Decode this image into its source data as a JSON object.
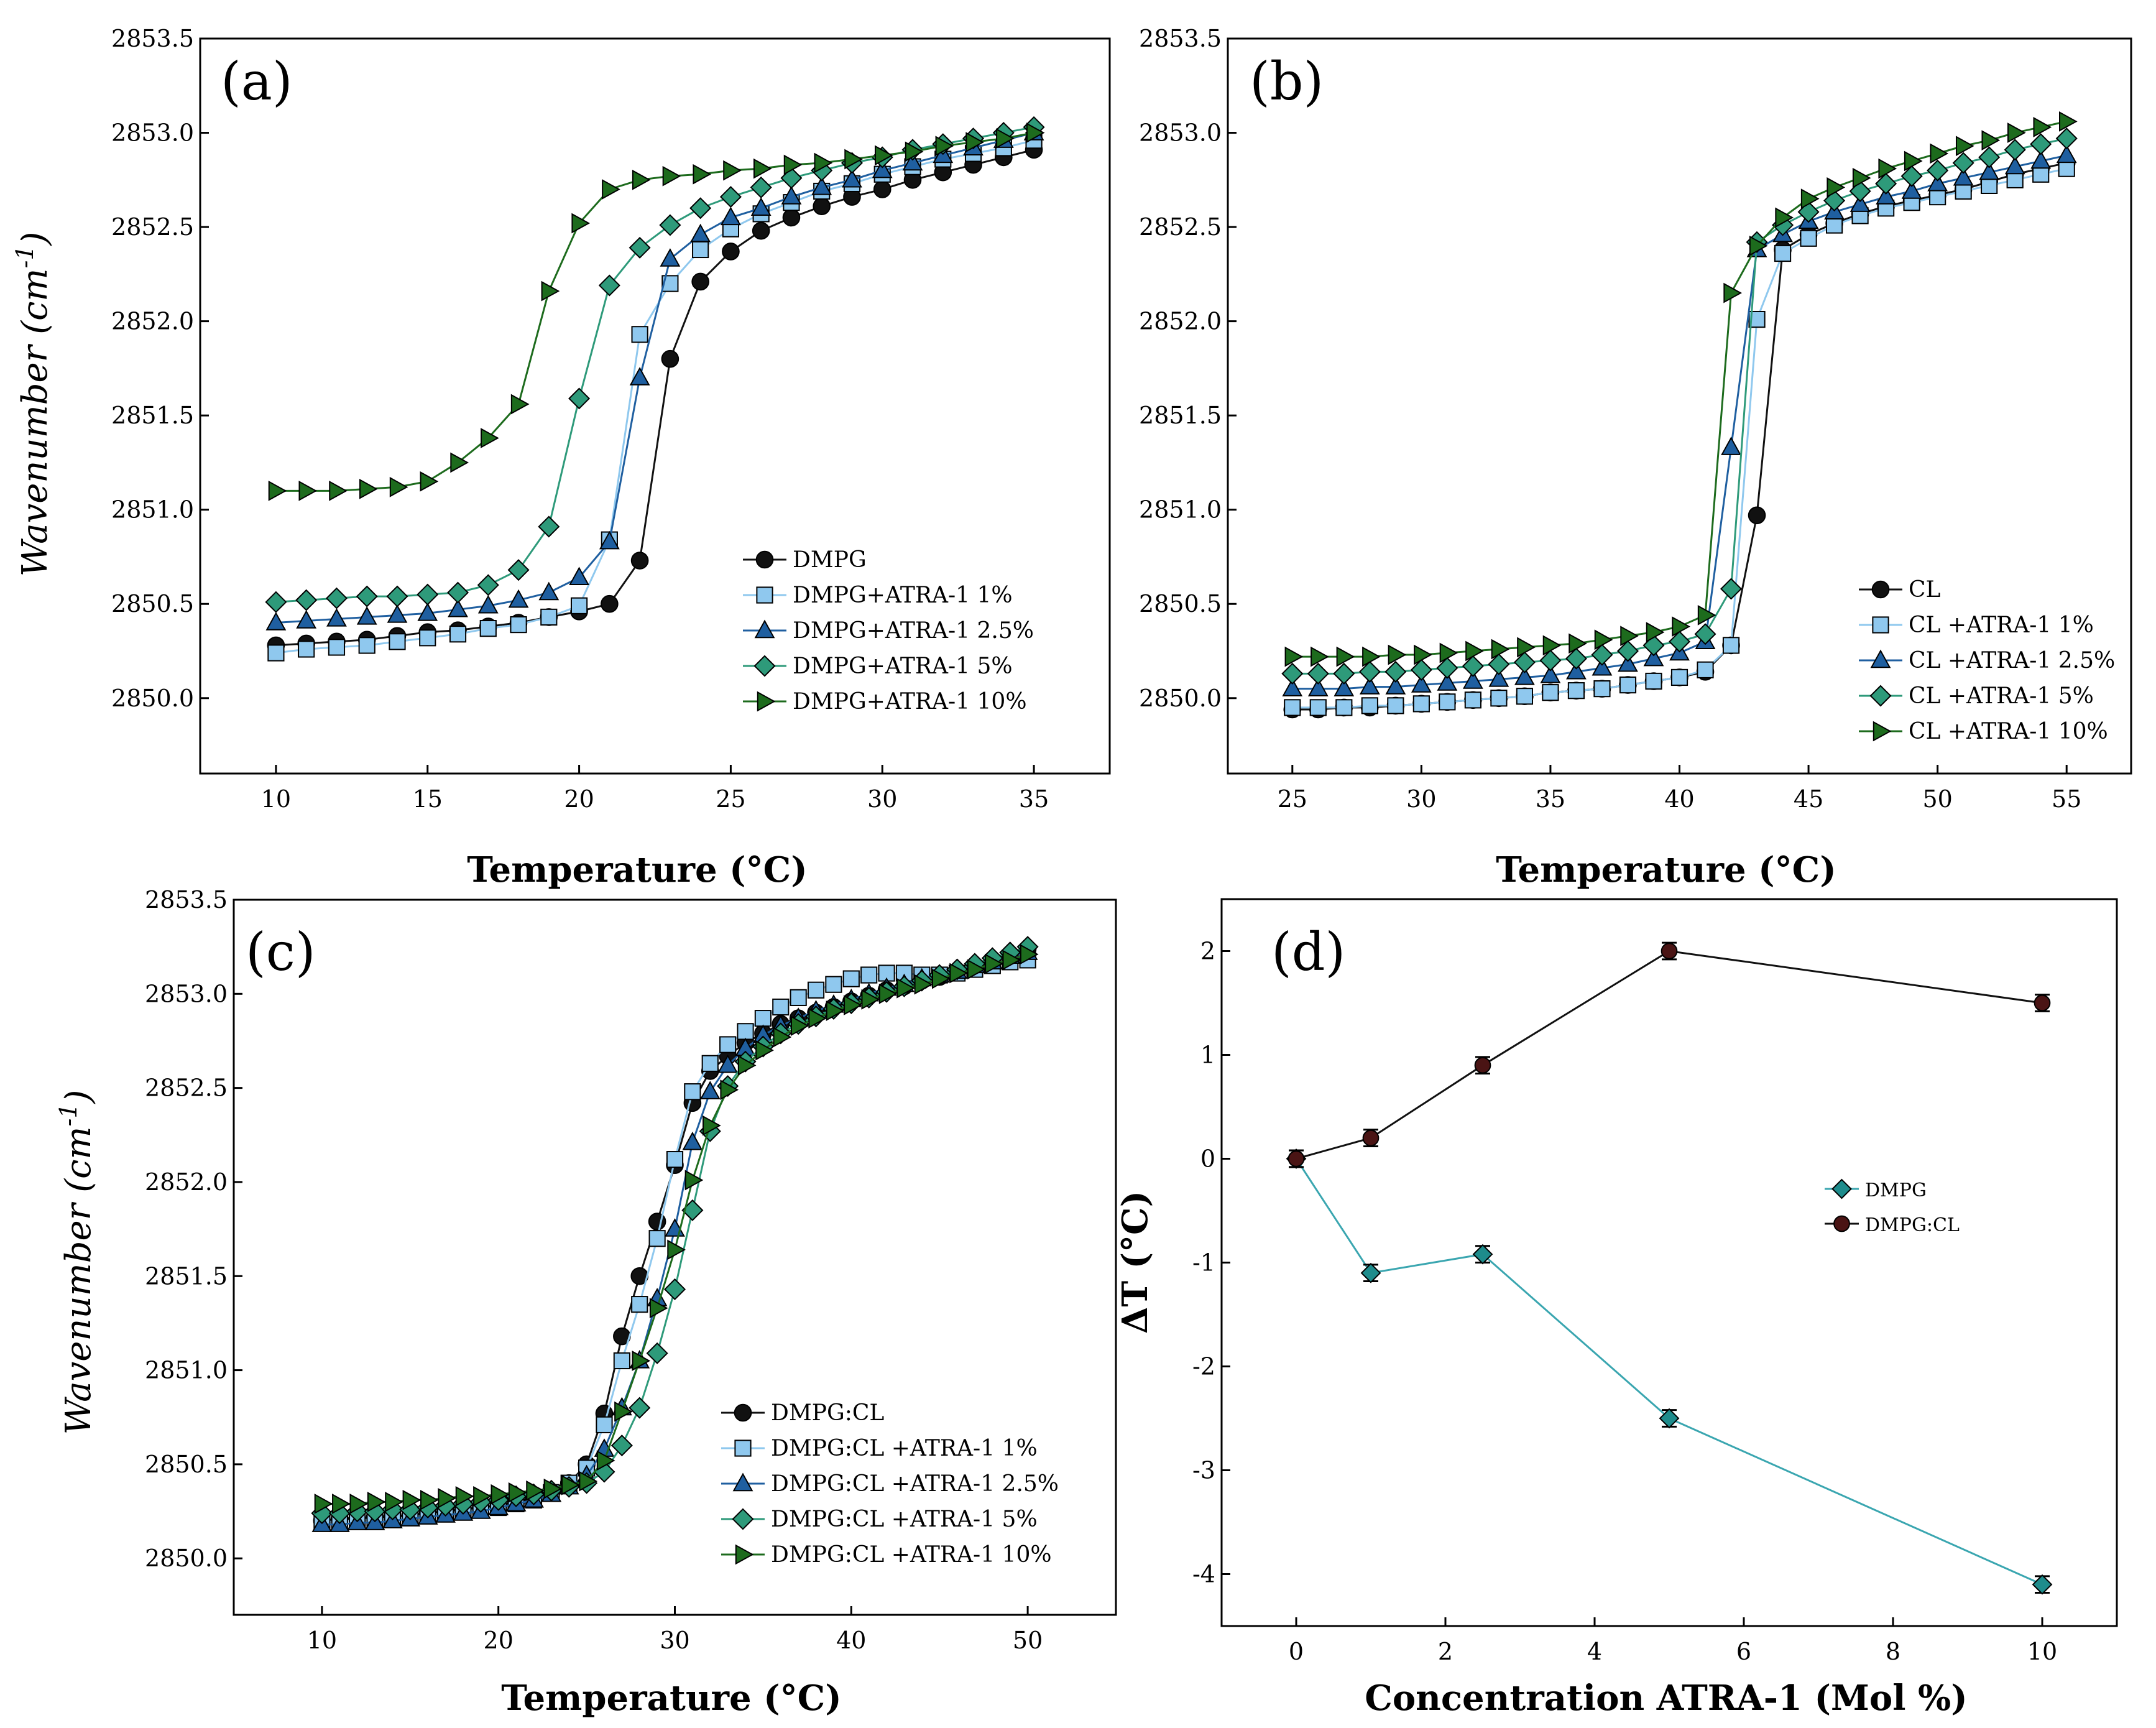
{
  "chart_data": [
    {
      "panel": "(a)",
      "type": "line",
      "xlabel": "Temperature (°C)",
      "ylabel": "Wavenumber (cm-1)",
      "xlim": [
        7.5,
        37.5
      ],
      "ylim": [
        2849.6,
        2853.5
      ],
      "xticks": [
        10,
        15,
        20,
        25,
        30,
        35
      ],
      "yticks": [
        2850.0,
        2850.5,
        2851.0,
        2851.5,
        2852.0,
        2852.5,
        2853.0,
        2853.5
      ],
      "legend_position": "center-right",
      "x": [
        10,
        11,
        12,
        13,
        14,
        15,
        16,
        17,
        18,
        19,
        20,
        21,
        22,
        23,
        24,
        25,
        26,
        27,
        28,
        29,
        30,
        31,
        32,
        33,
        34,
        35
      ],
      "series": [
        {
          "name": "DMPG",
          "marker": "circle",
          "color": "#111111",
          "line": "#111111",
          "values": [
            2850.28,
            2850.29,
            2850.3,
            2850.31,
            2850.33,
            2850.35,
            2850.36,
            2850.38,
            2850.4,
            2850.43,
            2850.46,
            2850.5,
            2850.73,
            2851.8,
            2852.21,
            2852.37,
            2852.48,
            2852.55,
            2852.61,
            2852.66,
            2852.7,
            2852.75,
            2852.79,
            2852.83,
            2852.87,
            2852.91
          ]
        },
        {
          "name": "DMPG+ATRA-1 1%",
          "marker": "square",
          "color": "#8fc8ee",
          "line": "#8fc8ee",
          "values": [
            2850.24,
            2850.26,
            2850.27,
            2850.28,
            2850.3,
            2850.32,
            2850.34,
            2850.37,
            2850.39,
            2850.43,
            2850.49,
            2850.84,
            2851.93,
            2852.2,
            2852.38,
            2852.49,
            2852.57,
            2852.63,
            2852.69,
            2852.73,
            2852.78,
            2852.82,
            2852.86,
            2852.89,
            2852.92,
            2852.96
          ]
        },
        {
          "name": "DMPG+ATRA-1 2.5%",
          "marker": "triangle-up",
          "color": "#1f5fa0",
          "line": "#1f5fa0",
          "values": [
            2850.4,
            2850.41,
            2850.42,
            2850.43,
            2850.44,
            2850.45,
            2850.47,
            2850.49,
            2850.52,
            2850.56,
            2850.64,
            2850.83,
            2851.7,
            2852.33,
            2852.46,
            2852.55,
            2852.6,
            2852.66,
            2852.71,
            2852.75,
            2852.8,
            2852.84,
            2852.88,
            2852.92,
            2852.96,
            2853.0
          ]
        },
        {
          "name": "DMPG+ATRA-1 5%",
          "marker": "diamond",
          "color": "#2e9a7a",
          "line": "#2e9a7a",
          "values": [
            2850.51,
            2850.52,
            2850.53,
            2850.54,
            2850.54,
            2850.55,
            2850.56,
            2850.6,
            2850.68,
            2850.91,
            2851.59,
            2852.19,
            2852.39,
            2852.51,
            2852.6,
            2852.66,
            2852.71,
            2852.76,
            2852.8,
            2852.84,
            2852.87,
            2852.91,
            2852.94,
            2852.97,
            2853.0,
            2853.03
          ]
        },
        {
          "name": "DMPG+ATRA-1 10%",
          "marker": "triangle-right",
          "color": "#1d6b1d",
          "line": "#1d6b1d",
          "values": [
            2851.1,
            2851.1,
            2851.1,
            2851.11,
            2851.12,
            2851.15,
            2851.25,
            2851.38,
            2851.56,
            2852.16,
            2852.52,
            2852.7,
            2852.75,
            2852.77,
            2852.78,
            2852.8,
            2852.81,
            2852.83,
            2852.84,
            2852.86,
            2852.88,
            2852.9,
            2852.93,
            2852.95,
            2852.97,
            2853.0
          ]
        }
      ]
    },
    {
      "panel": "(b)",
      "type": "line",
      "xlabel": "Temperature (°C)",
      "ylabel": "",
      "xlim": [
        22.5,
        57.5
      ],
      "ylim": [
        2849.6,
        2853.5
      ],
      "xticks": [
        25,
        30,
        35,
        40,
        45,
        50,
        55
      ],
      "yticks": [
        2850.0,
        2850.5,
        2851.0,
        2851.5,
        2852.0,
        2852.5,
        2853.0,
        2853.5
      ],
      "legend_position": "bottom-right",
      "x": [
        25,
        26,
        27,
        28,
        29,
        30,
        31,
        32,
        33,
        34,
        35,
        36,
        37,
        38,
        39,
        40,
        41,
        42,
        43,
        44,
        45,
        46,
        47,
        48,
        49,
        50,
        51,
        52,
        53,
        54,
        55
      ],
      "series": [
        {
          "name": "CL",
          "marker": "circle",
          "color": "#111111",
          "line": "#111111",
          "values": [
            2849.94,
            2849.94,
            2849.95,
            2849.95,
            2849.96,
            2849.97,
            2849.98,
            2849.99,
            2850.0,
            2850.01,
            2850.03,
            2850.04,
            2850.05,
            2850.07,
            2850.09,
            2850.11,
            2850.14,
            2850.28,
            2850.97,
            2852.38,
            2852.46,
            2852.52,
            2852.57,
            2852.61,
            2852.64,
            2852.67,
            2852.7,
            2852.74,
            2852.78,
            2852.81,
            2852.84
          ]
        },
        {
          "name": "CL +ATRA-1 1%",
          "marker": "square",
          "color": "#8fc8ee",
          "line": "#8fc8ee",
          "values": [
            2849.95,
            2849.95,
            2849.95,
            2849.96,
            2849.96,
            2849.97,
            2849.98,
            2849.99,
            2850.0,
            2850.01,
            2850.03,
            2850.04,
            2850.05,
            2850.07,
            2850.09,
            2850.11,
            2850.15,
            2850.28,
            2852.01,
            2852.36,
            2852.44,
            2852.51,
            2852.56,
            2852.6,
            2852.63,
            2852.66,
            2852.69,
            2852.72,
            2852.75,
            2852.78,
            2852.81
          ]
        },
        {
          "name": "CL +ATRA-1 2.5%",
          "marker": "triangle-up",
          "color": "#1f5fa0",
          "line": "#1f5fa0",
          "values": [
            2850.05,
            2850.05,
            2850.05,
            2850.06,
            2850.06,
            2850.07,
            2850.08,
            2850.09,
            2850.1,
            2850.11,
            2850.12,
            2850.14,
            2850.16,
            2850.18,
            2850.21,
            2850.24,
            2850.3,
            2851.33,
            2852.38,
            2852.46,
            2852.53,
            2852.58,
            2852.62,
            2852.66,
            2852.69,
            2852.73,
            2852.76,
            2852.79,
            2852.82,
            2852.85,
            2852.88
          ]
        },
        {
          "name": "CL +ATRA-1 5%",
          "marker": "diamond",
          "color": "#2e9a7a",
          "line": "#2e9a7a",
          "values": [
            2850.13,
            2850.13,
            2850.13,
            2850.14,
            2850.14,
            2850.15,
            2850.16,
            2850.17,
            2850.18,
            2850.19,
            2850.2,
            2850.21,
            2850.23,
            2850.25,
            2850.28,
            2850.3,
            2850.34,
            2850.58,
            2852.42,
            2852.51,
            2852.58,
            2852.64,
            2852.69,
            2852.73,
            2852.77,
            2852.8,
            2852.84,
            2852.87,
            2852.91,
            2852.94,
            2852.97
          ]
        },
        {
          "name": "CL +ATRA-1 10%",
          "marker": "triangle-right",
          "color": "#1d6b1d",
          "line": "#1d6b1d",
          "values": [
            2850.22,
            2850.22,
            2850.22,
            2850.22,
            2850.23,
            2850.23,
            2850.24,
            2850.25,
            2850.26,
            2850.27,
            2850.28,
            2850.29,
            2850.31,
            2850.33,
            2850.35,
            2850.38,
            2850.44,
            2852.15,
            2852.4,
            2852.55,
            2852.65,
            2852.71,
            2852.76,
            2852.81,
            2852.85,
            2852.89,
            2852.93,
            2852.96,
            2853.0,
            2853.03,
            2853.06
          ]
        }
      ]
    },
    {
      "panel": "(c)",
      "type": "line",
      "xlabel": "Temperature (°C)",
      "ylabel": "Wavenumber (cm-1)",
      "xlim": [
        5,
        55
      ],
      "ylim": [
        2849.7,
        2853.5
      ],
      "xticks": [
        10,
        20,
        30,
        40,
        50
      ],
      "yticks": [
        2850.0,
        2850.5,
        2851.0,
        2851.5,
        2852.0,
        2852.5,
        2853.0,
        2853.5
      ],
      "legend_position": "bottom-center",
      "x": [
        10,
        11,
        12,
        13,
        14,
        15,
        16,
        17,
        18,
        19,
        20,
        21,
        22,
        23,
        24,
        25,
        26,
        27,
        28,
        29,
        30,
        31,
        32,
        33,
        34,
        35,
        36,
        37,
        38,
        39,
        40,
        41,
        42,
        43,
        44,
        45,
        46,
        47,
        48,
        49,
        50
      ],
      "series": [
        {
          "name": "DMPG:CL",
          "marker": "circle",
          "color": "#111111",
          "line": "#111111",
          "values": [
            2850.2,
            2850.21,
            2850.21,
            2850.22,
            2850.22,
            2850.23,
            2850.24,
            2850.25,
            2850.26,
            2850.27,
            2850.28,
            2850.3,
            2850.32,
            2850.35,
            2850.4,
            2850.5,
            2850.77,
            2851.18,
            2851.5,
            2851.79,
            2852.09,
            2852.42,
            2852.59,
            2852.67,
            2852.74,
            2852.79,
            2852.84,
            2852.87,
            2852.9,
            2852.93,
            2852.96,
            2852.99,
            2853.02,
            2853.04,
            2853.07,
            2853.09,
            2853.12,
            2853.15,
            2853.18,
            2853.21,
            2853.24
          ]
        },
        {
          "name": "DMPG:CL +ATRA-1 1%",
          "marker": "square",
          "color": "#8fc8ee",
          "line": "#8fc8ee",
          "values": [
            2850.19,
            2850.2,
            2850.2,
            2850.21,
            2850.21,
            2850.22,
            2850.23,
            2850.24,
            2850.25,
            2850.26,
            2850.27,
            2850.29,
            2850.31,
            2850.35,
            2850.4,
            2850.48,
            2850.71,
            2851.05,
            2851.35,
            2851.7,
            2852.12,
            2852.48,
            2852.63,
            2852.73,
            2852.8,
            2852.87,
            2852.93,
            2852.98,
            2853.02,
            2853.05,
            2853.08,
            2853.1,
            2853.11,
            2853.11,
            2853.1,
            2853.1,
            2853.11,
            2853.13,
            2853.15,
            2853.17,
            2853.18
          ]
        },
        {
          "name": "DMPG:CL +ATRA-1 2.5%",
          "marker": "triangle-up",
          "color": "#1f5fa0",
          "line": "#1f5fa0",
          "values": [
            2850.18,
            2850.18,
            2850.19,
            2850.19,
            2850.2,
            2850.21,
            2850.22,
            2850.23,
            2850.24,
            2850.25,
            2850.27,
            2850.29,
            2850.31,
            2850.34,
            2850.38,
            2850.44,
            2850.58,
            2850.8,
            2851.05,
            2851.38,
            2851.75,
            2852.21,
            2852.48,
            2852.62,
            2852.71,
            2852.78,
            2852.83,
            2852.87,
            2852.91,
            2852.94,
            2852.97,
            2853.0,
            2853.03,
            2853.05,
            2853.08,
            2853.1,
            2853.12,
            2853.15,
            2853.17,
            2853.2,
            2853.22
          ]
        },
        {
          "name": "DMPG:CL +ATRA-1 5%",
          "marker": "diamond",
          "color": "#2e9a7a",
          "line": "#2e9a7a",
          "values": [
            2850.24,
            2850.24,
            2850.25,
            2850.25,
            2850.26,
            2850.26,
            2850.27,
            2850.28,
            2850.29,
            2850.3,
            2850.31,
            2850.33,
            2850.34,
            2850.36,
            2850.38,
            2850.4,
            2850.46,
            2850.6,
            2850.8,
            2851.09,
            2851.43,
            2851.85,
            2852.27,
            2852.51,
            2852.64,
            2852.72,
            2852.79,
            2852.84,
            2852.88,
            2852.92,
            2852.95,
            2852.98,
            2853.01,
            2853.04,
            2853.07,
            2853.1,
            2853.13,
            2853.16,
            2853.19,
            2853.22,
            2853.25
          ]
        },
        {
          "name": "DMPG:CL +ATRA-1 10%",
          "marker": "triangle-right",
          "color": "#1d6b1d",
          "line": "#1d6b1d",
          "values": [
            2850.29,
            2850.29,
            2850.29,
            2850.3,
            2850.3,
            2850.31,
            2850.31,
            2850.32,
            2850.33,
            2850.33,
            2850.34,
            2850.35,
            2850.36,
            2850.37,
            2850.39,
            2850.41,
            2850.52,
            2850.78,
            2851.05,
            2851.33,
            2851.64,
            2852.01,
            2852.3,
            2852.49,
            2852.62,
            2852.7,
            2852.77,
            2852.83,
            2852.87,
            2852.91,
            2852.94,
            2852.97,
            2853.0,
            2853.03,
            2853.05,
            2853.08,
            2853.11,
            2853.13,
            2853.16,
            2853.18,
            2853.21
          ]
        }
      ]
    },
    {
      "panel": "(d)",
      "type": "line",
      "xlabel": "Concentration ATRA-1 (Mol %)",
      "ylabel": "ΔT (°C)",
      "xlim": [
        -1,
        11
      ],
      "ylim": [
        -4.5,
        2.5
      ],
      "xticks": [
        0,
        2,
        4,
        6,
        8,
        10
      ],
      "yticks": [
        -4,
        -3,
        -2,
        -1,
        0,
        1,
        2
      ],
      "legend_position": "center-right",
      "x": [
        0,
        1,
        2.5,
        5,
        10
      ],
      "series": [
        {
          "name": "DMPG",
          "marker": "diamond",
          "color": "#1e8c8c",
          "line": "#3aa6b0",
          "values": [
            0.0,
            -1.1,
            -0.92,
            -2.5,
            -4.1
          ],
          "errors": [
            0.08,
            0.08,
            0.08,
            0.08,
            0.08
          ]
        },
        {
          "name": "DMPG:CL",
          "marker": "circle",
          "color": "#4a1414",
          "line": "#111111",
          "values": [
            0.0,
            0.2,
            0.9,
            2.0,
            1.5
          ],
          "errors": [
            0.08,
            0.08,
            0.08,
            0.08,
            0.08
          ]
        }
      ]
    }
  ]
}
